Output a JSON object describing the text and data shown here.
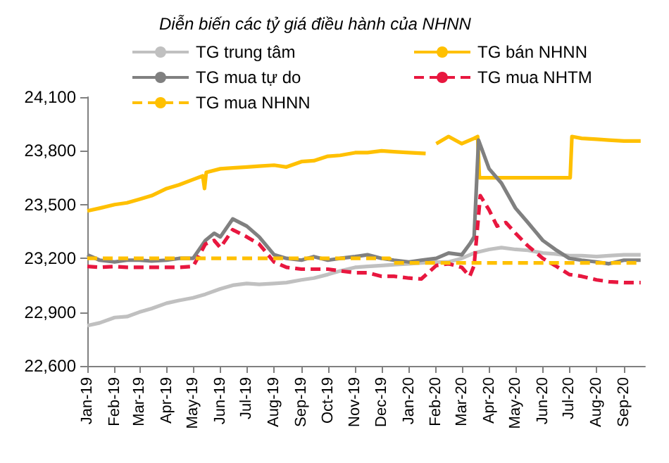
{
  "chart_data": {
    "type": "line",
    "title": "Diễn biến các tỷ giá điều hành của NHNN",
    "xlim": [
      "2019-01-01",
      "2020-09-25"
    ],
    "xticks": [
      {
        "value": "2019-01",
        "label": "Jan-19"
      },
      {
        "value": "2019-02",
        "label": "Feb-19"
      },
      {
        "value": "2019-03",
        "label": "Mar-19"
      },
      {
        "value": "2019-04",
        "label": "Apr-19"
      },
      {
        "value": "2019-05",
        "label": "May-19"
      },
      {
        "value": "2019-06",
        "label": "Jun-19"
      },
      {
        "value": "2019-07",
        "label": "Jul-19"
      },
      {
        "value": "2019-08",
        "label": "Aug-19"
      },
      {
        "value": "2019-09",
        "label": "Sep-19"
      },
      {
        "value": "2019-10",
        "label": "Oct-19"
      },
      {
        "value": "2019-11",
        "label": "Nov-19"
      },
      {
        "value": "2019-12",
        "label": "Dec-19"
      },
      {
        "value": "2020-01",
        "label": "Jan-20"
      },
      {
        "value": "2020-02",
        "label": "Feb-20"
      },
      {
        "value": "2020-03",
        "label": "Mar-20"
      },
      {
        "value": "2020-04",
        "label": "Apr-20"
      },
      {
        "value": "2020-05",
        "label": "May-20"
      },
      {
        "value": "2020-06",
        "label": "Jun-20"
      },
      {
        "value": "2020-07",
        "label": "Jul-20"
      },
      {
        "value": "2020-08",
        "label": "Aug-20"
      },
      {
        "value": "2020-09",
        "label": "Sep-20"
      }
    ],
    "ylim": [
      22600,
      24100
    ],
    "yticks": [
      {
        "value": 22600,
        "label": "22,600"
      },
      {
        "value": 22900,
        "label": "22,900"
      },
      {
        "value": 23200,
        "label": "23,200"
      },
      {
        "value": 23500,
        "label": "23,500"
      },
      {
        "value": 23800,
        "label": "23,800"
      },
      {
        "value": 24100,
        "label": "24,100"
      }
    ],
    "grid": false,
    "legend": "top",
    "marker": "none",
    "series": [
      {
        "name": "TG trung tâm",
        "color": "#c0c0c0",
        "line_style": "solid",
        "x": [
          "2019-01-01",
          "2019-01-15",
          "2019-02-01",
          "2019-02-15",
          "2019-03-01",
          "2019-03-15",
          "2019-04-01",
          "2019-04-15",
          "2019-05-01",
          "2019-05-15",
          "2019-06-01",
          "2019-06-15",
          "2019-07-01",
          "2019-07-15",
          "2019-08-01",
          "2019-08-15",
          "2019-09-01",
          "2019-09-15",
          "2019-10-01",
          "2019-10-15",
          "2019-11-01",
          "2019-11-15",
          "2019-12-01",
          "2019-12-15",
          "2020-01-01",
          "2020-01-15",
          "2020-02-01",
          "2020-02-15",
          "2020-03-01",
          "2020-03-15",
          "2020-04-01",
          "2020-04-15",
          "2020-05-01",
          "2020-05-15",
          "2020-06-01",
          "2020-06-15",
          "2020-07-01",
          "2020-07-15",
          "2020-08-01",
          "2020-08-15",
          "2020-09-01",
          "2020-09-20"
        ],
        "values": [
          22825,
          22840,
          22870,
          22875,
          22900,
          22920,
          22950,
          22965,
          22980,
          23000,
          23030,
          23050,
          23060,
          23055,
          23060,
          23065,
          23080,
          23090,
          23110,
          23130,
          23150,
          23155,
          23160,
          23165,
          23170,
          23175,
          23180,
          23180,
          23200,
          23230,
          23250,
          23260,
          23250,
          23245,
          23230,
          23225,
          23215,
          23215,
          23210,
          23215,
          23220,
          23220
        ]
      },
      {
        "name": "TG bán NHNN",
        "color": "#ffc000",
        "line_style": "solid",
        "x": [
          "2019-01-01",
          "2019-01-15",
          "2019-02-01",
          "2019-02-15",
          "2019-03-01",
          "2019-03-15",
          "2019-04-01",
          "2019-04-15",
          "2019-05-01",
          "2019-05-12",
          "2019-05-14",
          "2019-05-16",
          "2019-06-01",
          "2019-06-15",
          "2019-07-01",
          "2019-07-15",
          "2019-08-01",
          "2019-08-15",
          "2019-09-01",
          "2019-09-15",
          "2019-10-01",
          "2019-10-15",
          "2019-11-01",
          "2019-11-15",
          "2019-12-01",
          "2019-12-15",
          "2020-01-01",
          "2020-01-20",
          "2020-01-25",
          "2020-02-01",
          "2020-02-15",
          "2020-03-01",
          "2020-03-15",
          "2020-03-19",
          "2020-03-21",
          "2020-04-15",
          "2020-05-15",
          "2020-06-15",
          "2020-07-02",
          "2020-07-04",
          "2020-07-15",
          "2020-08-01",
          "2020-08-15",
          "2020-09-01",
          "2020-09-20"
        ],
        "values": [
          23465,
          23480,
          23500,
          23510,
          23530,
          23550,
          23590,
          23610,
          23640,
          23660,
          23590,
          23680,
          23700,
          23705,
          23710,
          23715,
          23720,
          23710,
          23740,
          23745,
          23770,
          23775,
          23790,
          23790,
          23800,
          23795,
          23790,
          23785,
          null,
          23840,
          23880,
          23840,
          23870,
          23880,
          23650,
          23650,
          23650,
          23650,
          23650,
          23880,
          23870,
          23865,
          23860,
          23855,
          23855
        ]
      },
      {
        "name": "TG mua tự do",
        "color": "#808080",
        "line_style": "solid",
        "x": [
          "2019-01-01",
          "2019-01-15",
          "2019-02-01",
          "2019-02-15",
          "2019-03-01",
          "2019-03-15",
          "2019-04-01",
          "2019-04-15",
          "2019-05-01",
          "2019-05-15",
          "2019-05-25",
          "2019-06-01",
          "2019-06-15",
          "2019-07-01",
          "2019-07-15",
          "2019-08-01",
          "2019-08-15",
          "2019-09-01",
          "2019-09-15",
          "2019-10-01",
          "2019-10-15",
          "2019-11-01",
          "2019-11-15",
          "2019-12-01",
          "2019-12-15",
          "2020-01-01",
          "2020-01-15",
          "2020-02-01",
          "2020-02-15",
          "2020-03-01",
          "2020-03-10",
          "2020-03-15",
          "2020-03-20",
          "2020-04-01",
          "2020-04-15",
          "2020-05-01",
          "2020-05-15",
          "2020-06-01",
          "2020-06-15",
          "2020-07-01",
          "2020-07-15",
          "2020-08-01",
          "2020-08-15",
          "2020-09-01",
          "2020-09-20"
        ],
        "values": [
          23220,
          23190,
          23180,
          23190,
          23190,
          23185,
          23190,
          23200,
          23200,
          23300,
          23340,
          23320,
          23420,
          23380,
          23320,
          23220,
          23200,
          23190,
          23210,
          23190,
          23200,
          23210,
          23220,
          23200,
          23190,
          23180,
          23190,
          23200,
          23230,
          23220,
          23280,
          23320,
          23860,
          23700,
          23620,
          23480,
          23400,
          23300,
          23250,
          23200,
          23190,
          23180,
          23170,
          23190,
          23190
        ]
      },
      {
        "name": "TG mua NHTM",
        "color": "#e8173f",
        "line_style": "dashed",
        "x": [
          "2019-01-01",
          "2019-01-15",
          "2019-02-01",
          "2019-02-15",
          "2019-03-01",
          "2019-03-15",
          "2019-04-01",
          "2019-04-15",
          "2019-05-01",
          "2019-05-15",
          "2019-05-25",
          "2019-06-01",
          "2019-06-15",
          "2019-07-01",
          "2019-07-15",
          "2019-08-01",
          "2019-08-15",
          "2019-09-01",
          "2019-09-15",
          "2019-10-01",
          "2019-10-15",
          "2019-11-01",
          "2019-11-15",
          "2019-12-01",
          "2019-12-15",
          "2020-01-01",
          "2020-01-15",
          "2020-02-01",
          "2020-02-15",
          "2020-03-01",
          "2020-03-10",
          "2020-03-15",
          "2020-03-22",
          "2020-04-01",
          "2020-04-10",
          "2020-04-20",
          "2020-05-01",
          "2020-05-15",
          "2020-06-01",
          "2020-06-15",
          "2020-07-01",
          "2020-07-15",
          "2020-08-01",
          "2020-08-15",
          "2020-09-01",
          "2020-09-20"
        ],
        "values": [
          23155,
          23150,
          23155,
          23150,
          23150,
          23150,
          23150,
          23150,
          23155,
          23280,
          23300,
          23260,
          23360,
          23320,
          23280,
          23180,
          23150,
          23140,
          23140,
          23140,
          23130,
          23120,
          23120,
          23100,
          23100,
          23090,
          23085,
          23160,
          23170,
          23150,
          23100,
          23160,
          23550,
          23470,
          23380,
          23400,
          23340,
          23270,
          23200,
          23160,
          23110,
          23100,
          23080,
          23070,
          23065,
          23065
        ]
      },
      {
        "name": "TG mua NHNN",
        "color": "#ffc000",
        "line_style": "dashed",
        "x": [
          "2019-01-01",
          "2019-12-10",
          "2019-12-12",
          "2020-09-20"
        ],
        "values": [
          23200,
          23200,
          23175,
          23175
        ]
      }
    ]
  }
}
